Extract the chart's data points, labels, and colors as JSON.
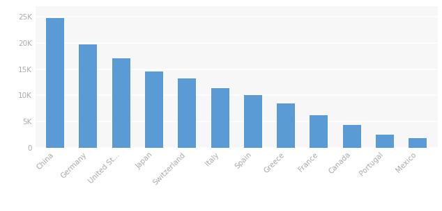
{
  "categories": [
    "China",
    "Germany",
    "United St...",
    "Japan",
    "Switzerland",
    "Italy",
    "Spain",
    "Greece",
    "France",
    "Canada",
    "Portugal",
    "Mexico"
  ],
  "values": [
    24800,
    19700,
    17100,
    14600,
    13200,
    11400,
    10100,
    8400,
    6200,
    4300,
    2500,
    1800
  ],
  "bar_color": "#5B9BD5",
  "background_color": "#FFFFFF",
  "plot_bg_color": "#F7F7F7",
  "ylim": [
    0,
    27000
  ],
  "yticks": [
    0,
    5000,
    10000,
    15000,
    20000,
    25000
  ],
  "ytick_labels": [
    "0",
    "5K",
    "10K",
    "15K",
    "20K",
    "25K"
  ],
  "grid_color": "#FFFFFF",
  "tick_label_color": "#AAAAAA",
  "tick_label_fontsize": 7.5,
  "bar_width": 0.55
}
